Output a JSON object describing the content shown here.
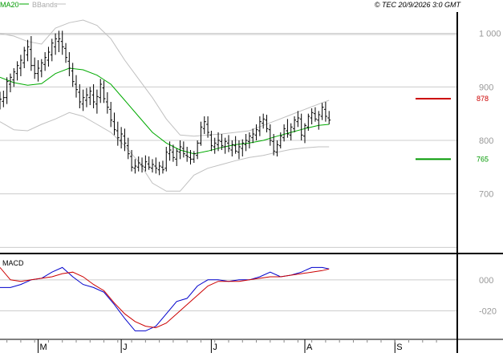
{
  "header": {
    "legend_ma": "MA20",
    "legend_bb": "BBands",
    "copyright": "© TEC 20/9/2026 3:0 GMT"
  },
  "colors": {
    "price": "#000000",
    "ma20": "#00aa00",
    "bbands": "#c0c0c0",
    "resistance": "#cc0000",
    "support": "#009900",
    "macd": "#0000cc",
    "signal": "#cc0000",
    "grid": "#cccccc",
    "frame": "#000000"
  },
  "chart_data": [
    {
      "type": "line",
      "panel": "price",
      "y_ticks": [
        700,
        800,
        900,
        1000
      ],
      "y_tick_labels": [
        "700",
        "800",
        "900",
        "1 000"
      ],
      "ylim": [
        590,
        1040
      ],
      "xlim": [
        0,
        132
      ],
      "x_tick_labels": [
        {
          "label": "M",
          "x": 11
        },
        {
          "label": "J",
          "x": 35
        },
        {
          "label": "J",
          "x": 61
        },
        {
          "label": "A",
          "x": 88
        },
        {
          "label": "S",
          "x": 114
        }
      ],
      "levels": [
        {
          "label": "878",
          "value": 878,
          "color": "#cc0000"
        },
        {
          "label": "765",
          "value": 765,
          "color": "#009900"
        }
      ],
      "ohlc": [
        [
          0,
          867,
          891,
          858,
          877
        ],
        [
          1,
          873,
          893,
          862,
          880
        ],
        [
          2,
          880,
          918,
          868,
          910
        ],
        [
          3,
          905,
          925,
          890,
          918
        ],
        [
          4,
          913,
          935,
          900,
          928
        ],
        [
          5,
          925,
          948,
          912,
          940
        ],
        [
          6,
          935,
          960,
          920,
          950
        ],
        [
          7,
          945,
          975,
          935,
          968
        ],
        [
          8,
          960,
          988,
          948,
          975
        ],
        [
          9,
          970,
          995,
          930,
          940
        ],
        [
          10,
          940,
          955,
          915,
          925
        ],
        [
          11,
          925,
          950,
          910,
          935
        ],
        [
          12,
          930,
          952,
          918,
          945
        ],
        [
          13,
          942,
          965,
          930,
          955
        ],
        [
          14,
          950,
          975,
          938,
          965
        ],
        [
          15,
          960,
          990,
          948,
          982
        ],
        [
          16,
          975,
          1000,
          960,
          990
        ],
        [
          17,
          985,
          1005,
          965,
          990
        ],
        [
          18,
          985,
          1005,
          960,
          975
        ],
        [
          19,
          972,
          982,
          945,
          955
        ],
        [
          20,
          948,
          965,
          920,
          935
        ],
        [
          21,
          930,
          945,
          900,
          910
        ],
        [
          22,
          905,
          922,
          880,
          895
        ],
        [
          23,
          890,
          905,
          860,
          872
        ],
        [
          24,
          868,
          895,
          855,
          880
        ],
        [
          25,
          875,
          898,
          862,
          885
        ],
        [
          26,
          880,
          900,
          866,
          892
        ],
        [
          27,
          885,
          905,
          860,
          872
        ],
        [
          28,
          868,
          895,
          850,
          882
        ],
        [
          29,
          880,
          915,
          870,
          905
        ],
        [
          30,
          898,
          912,
          870,
          878
        ],
        [
          31,
          872,
          890,
          850,
          862
        ],
        [
          32,
          858,
          872,
          825,
          838
        ],
        [
          33,
          835,
          852,
          810,
          820
        ],
        [
          34,
          818,
          835,
          790,
          805
        ],
        [
          35,
          800,
          825,
          785,
          812
        ],
        [
          36,
          808,
          822,
          780,
          795
        ],
        [
          37,
          790,
          805,
          765,
          775
        ],
        [
          38,
          770,
          782,
          742,
          750
        ],
        [
          39,
          748,
          765,
          738,
          752
        ],
        [
          40,
          750,
          770,
          742,
          758
        ],
        [
          41,
          755,
          768,
          740,
          752
        ],
        [
          42,
          750,
          772,
          742,
          760
        ],
        [
          43,
          756,
          770,
          745,
          750
        ],
        [
          44,
          748,
          765,
          740,
          755
        ],
        [
          45,
          752,
          768,
          738,
          748
        ],
        [
          46,
          745,
          760,
          735,
          752
        ],
        [
          47,
          750,
          762,
          738,
          745
        ],
        [
          48,
          748,
          788,
          742,
          778
        ],
        [
          49,
          775,
          798,
          762,
          782
        ],
        [
          50,
          778,
          792,
          760,
          768
        ],
        [
          51,
          765,
          785,
          752,
          780
        ],
        [
          52,
          778,
          800,
          765,
          788
        ],
        [
          53,
          785,
          798,
          768,
          775
        ],
        [
          54,
          772,
          788,
          760,
          770
        ],
        [
          55,
          768,
          782,
          755,
          765
        ],
        [
          56,
          765,
          780,
          758,
          775
        ],
        [
          57,
          772,
          800,
          765,
          795
        ],
        [
          58,
          795,
          835,
          790,
          825
        ],
        [
          59,
          822,
          845,
          812,
          835
        ],
        [
          60,
          830,
          845,
          805,
          815
        ],
        [
          61,
          810,
          818,
          780,
          790
        ],
        [
          62,
          788,
          805,
          775,
          795
        ],
        [
          63,
          792,
          815,
          780,
          800
        ],
        [
          64,
          798,
          812,
          782,
          790
        ],
        [
          65,
          788,
          805,
          775,
          798
        ],
        [
          66,
          795,
          810,
          778,
          785
        ],
        [
          67,
          782,
          800,
          770,
          792
        ],
        [
          68,
          790,
          808,
          775,
          780
        ],
        [
          69,
          778,
          800,
          765,
          788
        ],
        [
          70,
          785,
          802,
          770,
          795
        ],
        [
          71,
          792,
          812,
          780,
          800
        ],
        [
          72,
          798,
          815,
          785,
          808
        ],
        [
          73,
          805,
          822,
          795,
          812
        ],
        [
          74,
          810,
          830,
          800,
          820
        ],
        [
          75,
          818,
          845,
          808,
          835
        ],
        [
          76,
          832,
          850,
          822,
          840
        ],
        [
          77,
          838,
          848,
          815,
          822
        ],
        [
          78,
          820,
          830,
          790,
          800
        ],
        [
          79,
          798,
          812,
          772,
          780
        ],
        [
          80,
          778,
          800,
          770,
          792
        ],
        [
          81,
          790,
          815,
          785,
          808
        ],
        [
          82,
          805,
          830,
          798,
          822
        ],
        [
          83,
          818,
          840,
          805,
          812
        ],
        [
          84,
          810,
          832,
          800,
          825
        ],
        [
          85,
          822,
          845,
          815,
          838
        ],
        [
          86,
          835,
          855,
          825,
          842
        ],
        [
          87,
          840,
          850,
          800,
          810
        ],
        [
          88,
          808,
          832,
          795,
          828
        ],
        [
          89,
          825,
          850,
          818,
          845
        ],
        [
          90,
          842,
          860,
          830,
          852
        ],
        [
          91,
          850,
          862,
          835,
          840
        ],
        [
          92,
          838,
          855,
          820,
          848
        ],
        [
          93,
          845,
          870,
          838,
          862
        ],
        [
          94,
          858,
          872,
          835,
          845
        ],
        [
          95,
          842,
          855,
          830,
          838
        ]
      ],
      "ma20": [
        [
          0,
          918
        ],
        [
          4,
          908
        ],
        [
          8,
          903
        ],
        [
          12,
          906
        ],
        [
          16,
          925
        ],
        [
          20,
          935
        ],
        [
          24,
          932
        ],
        [
          28,
          922
        ],
        [
          32,
          905
        ],
        [
          36,
          875
        ],
        [
          40,
          845
        ],
        [
          44,
          815
        ],
        [
          48,
          795
        ],
        [
          52,
          782
        ],
        [
          56,
          775
        ],
        [
          60,
          780
        ],
        [
          64,
          787
        ],
        [
          68,
          792
        ],
        [
          72,
          795
        ],
        [
          76,
          800
        ],
        [
          80,
          808
        ],
        [
          84,
          815
        ],
        [
          88,
          822
        ],
        [
          92,
          828
        ],
        [
          95,
          830
        ]
      ],
      "bb_upper": [
        [
          0,
          1000
        ],
        [
          4,
          995
        ],
        [
          8,
          985
        ],
        [
          12,
          980
        ],
        [
          16,
          1010
        ],
        [
          20,
          1020
        ],
        [
          24,
          1025
        ],
        [
          28,
          1015
        ],
        [
          32,
          990
        ],
        [
          36,
          950
        ],
        [
          40,
          915
        ],
        [
          44,
          880
        ],
        [
          48,
          840
        ],
        [
          52,
          810
        ],
        [
          56,
          808
        ],
        [
          60,
          810
        ],
        [
          64,
          812
        ],
        [
          68,
          815
        ],
        [
          72,
          818
        ],
        [
          76,
          828
        ],
        [
          80,
          838
        ],
        [
          84,
          848
        ],
        [
          88,
          858
        ],
        [
          92,
          868
        ],
        [
          95,
          875
        ]
      ],
      "bb_lower": [
        [
          0,
          835
        ],
        [
          4,
          820
        ],
        [
          8,
          818
        ],
        [
          12,
          830
        ],
        [
          16,
          840
        ],
        [
          20,
          852
        ],
        [
          24,
          845
        ],
        [
          28,
          830
        ],
        [
          32,
          815
        ],
        [
          36,
          790
        ],
        [
          40,
          760
        ],
        [
          44,
          720
        ],
        [
          48,
          705
        ],
        [
          52,
          705
        ],
        [
          56,
          735
        ],
        [
          60,
          748
        ],
        [
          64,
          755
        ],
        [
          68,
          762
        ],
        [
          72,
          768
        ],
        [
          76,
          772
        ],
        [
          80,
          778
        ],
        [
          84,
          783
        ],
        [
          88,
          786
        ],
        [
          92,
          788
        ],
        [
          95,
          788
        ]
      ]
    },
    {
      "type": "line",
      "panel": "macd",
      "title": "MACD",
      "y_ticks": [
        0,
        -20
      ],
      "y_tick_labels": [
        "000",
        "-020"
      ],
      "ylim": [
        -38,
        16
      ],
      "xlim": [
        0,
        132
      ],
      "series": [
        {
          "color": "#0000cc",
          "x": [
            0,
            3,
            6,
            9,
            12,
            15,
            18,
            21,
            24,
            27,
            30,
            33,
            36,
            39,
            42,
            45,
            48,
            51,
            54,
            57,
            60,
            63,
            66,
            69,
            72,
            75,
            78,
            81,
            84,
            87,
            90,
            93,
            95
          ],
          "values": [
            -5,
            -5,
            -3,
            0,
            1,
            5,
            8,
            2,
            -3,
            -5,
            -8,
            -16,
            -25,
            -33,
            -33,
            -30,
            -22,
            -14,
            -12,
            -4,
            0,
            0,
            -1,
            0,
            0,
            2,
            5,
            2,
            3,
            5,
            8,
            8,
            7
          ]
        },
        {
          "color": "#cc0000",
          "x": [
            0,
            3,
            6,
            9,
            12,
            15,
            18,
            21,
            24,
            27,
            30,
            33,
            36,
            39,
            42,
            45,
            48,
            51,
            54,
            57,
            60,
            63,
            66,
            69,
            72,
            75,
            78,
            81,
            84,
            87,
            90,
            93,
            95
          ],
          "values": [
            8,
            0,
            -1,
            0,
            1,
            2,
            4,
            5,
            2,
            -3,
            -7,
            -15,
            -22,
            -27,
            -30,
            -31,
            -28,
            -22,
            -16,
            -10,
            -4,
            -1,
            -1,
            -1,
            0,
            1,
            2,
            2,
            3,
            4,
            5,
            6,
            7
          ]
        }
      ]
    }
  ]
}
